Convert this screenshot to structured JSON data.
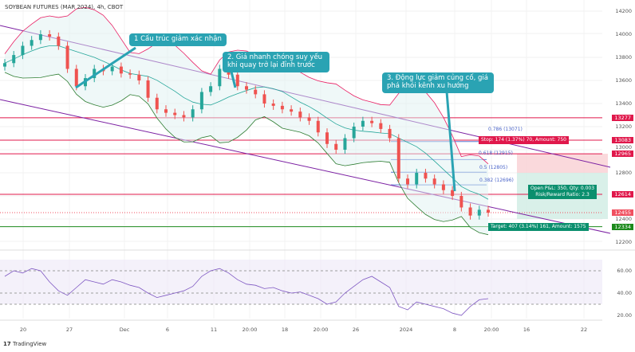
{
  "title": "SOYBEAN FUTURES (MAR 2024), 4h, CBOT",
  "chart_data": {
    "type": "candlestick",
    "title": "SOYBEAN FUTURES (MAR 2024), 4h, CBOT",
    "closes": [
      13750,
      13820,
      13900,
      13950,
      14000,
      13980,
      13900,
      13700,
      13550,
      13620,
      13700,
      13680,
      13720,
      13660,
      13650,
      13600,
      13450,
      13350,
      13320,
      13300,
      13280,
      13350,
      13500,
      13550,
      13700,
      13650,
      13550,
      13520,
      13480,
      13400,
      13380,
      13350,
      13330,
      13280,
      13250,
      13150,
      13050,
      13000,
      13100,
      13200,
      13250,
      13230,
      13180,
      13100,
      12750,
      12700,
      12800,
      12750,
      12700,
      12650,
      12600,
      12500,
      12430,
      12480,
      12455
    ],
    "ylim": [
      12100,
      14250
    ],
    "y_ticks": [
      "14200",
      "14000",
      "13800",
      "13600",
      "13400",
      "13200",
      "13000",
      "12800",
      "12400",
      "12200"
    ],
    "x_ticks": [
      "20",
      "27",
      "Dec",
      "6",
      "11",
      "20:00",
      "18",
      "20:00",
      "26",
      "2024",
      "8",
      "20:00",
      "16",
      "22"
    ],
    "levels": [
      {
        "value": "13277",
        "color": "#e0184b"
      },
      {
        "value": "13083",
        "color": "#e0184b"
      },
      {
        "value": "12965",
        "color": "#e0184b"
      },
      {
        "value": "12614",
        "color": "#e0184b"
      },
      {
        "value": "12455",
        "color": "#f05060"
      },
      {
        "value": "12334",
        "color": "#1c8a1c"
      }
    ],
    "fibonacci": [
      "0.786 (13071)",
      "0.618 (12915)",
      "0.5 (12805)",
      "0.382 (12696)"
    ],
    "rsi": {
      "y_ticks": [
        "60.00",
        "40.00",
        "20.00"
      ],
      "values": [
        55,
        60,
        58,
        62,
        60,
        50,
        42,
        38,
        45,
        52,
        50,
        48,
        52,
        50,
        47,
        45,
        40,
        36,
        38,
        40,
        42,
        46,
        55,
        60,
        62,
        58,
        52,
        48,
        47,
        44,
        45,
        42,
        40,
        41,
        38,
        35,
        30,
        32,
        40,
        46,
        52,
        55,
        50,
        45,
        28,
        25,
        32,
        30,
        28,
        26,
        22,
        20,
        28,
        34,
        35
      ]
    }
  },
  "callouts": [
    "1 Cấu trúc giảm xác nhận",
    "2. Giá nhanh chóng suy yếu khi quay trở lại đỉnh trước",
    "3. Động lực giảm củng cố, giá phá khỏi kênh xu hướng"
  ],
  "position": {
    "stop": "Stop: 174 (1.37%) 70, Amount: 750",
    "target": "Target: 407 (3.14%) 161, Amount: 1575",
    "pnl": "Open P&L: 350, Qty: 0.003",
    "rr": "Risk/Reward Ratio: 2.3"
  },
  "brand": "TradingView",
  "colors": {
    "up": "#26a69a",
    "down": "#ef5350",
    "channel": "#7b1fa2",
    "bb": "#e91e63",
    "basis": "#2962ff"
  }
}
